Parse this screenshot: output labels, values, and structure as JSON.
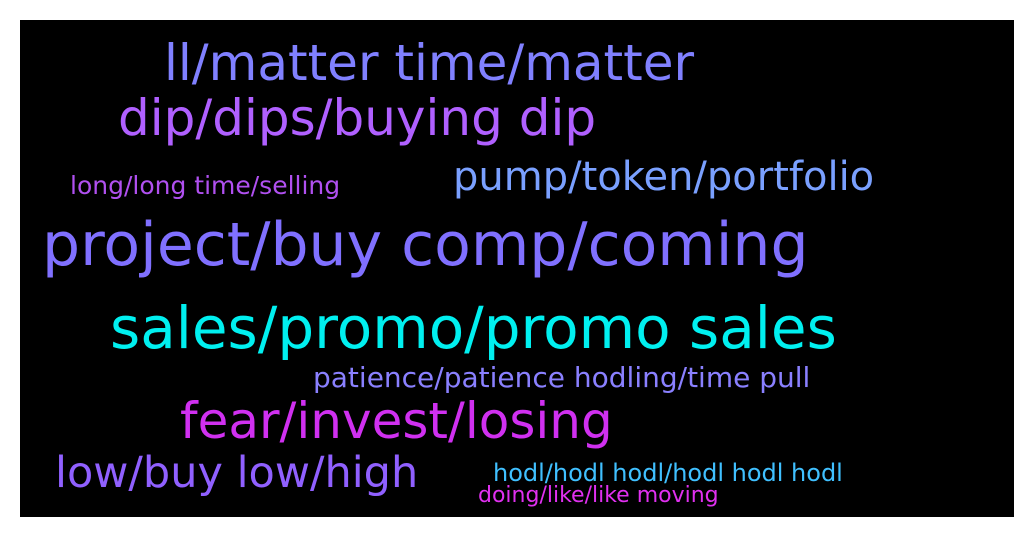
{
  "words": [
    {
      "text": "ll/matter time/matter",
      "color": "#8080ff"
    },
    {
      "text": "dip/dips/buying dip",
      "color": "#b060ff"
    },
    {
      "text": "long/long time/selling",
      "color": "#b050f0"
    },
    {
      "text": "pump/token/portfolio",
      "color": "#7aa0ff"
    },
    {
      "text": "project/buy comp/coming",
      "color": "#8070ff"
    },
    {
      "text": "sales/promo/promo sales",
      "color": "#00f0f0"
    },
    {
      "text": "patience/patience hodling/time pull",
      "color": "#8a80ff"
    },
    {
      "text": "fear/invest/losing",
      "color": "#d030f0"
    },
    {
      "text": "low/buy low/high",
      "color": "#9060ff"
    },
    {
      "text": "hodl/hodl hodl/hodl hodl hodl",
      "color": "#40c0ff"
    },
    {
      "text": "doing/like/like moving",
      "color": "#e030f0"
    }
  ]
}
